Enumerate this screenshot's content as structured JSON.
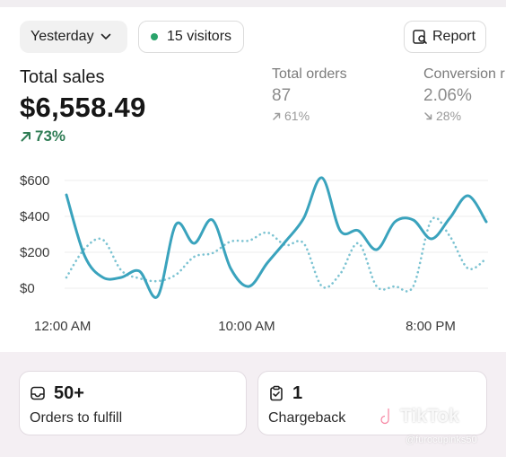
{
  "toolbar": {
    "date_label": "Yesterday",
    "visitors_label": "15 visitors",
    "report_label": "Report"
  },
  "metrics": {
    "total_sales": {
      "label": "Total sales",
      "value": "$6,558.49",
      "change": "73%"
    },
    "total_orders": {
      "label": "Total orders",
      "value": "87",
      "change": "61%"
    },
    "conversion": {
      "label": "Conversion r",
      "value": "2.06%",
      "change": "28%"
    }
  },
  "colors": {
    "accent_green": "#2f7d55",
    "series_current": "#3aa3bd",
    "series_previous": "#7cc3d2"
  },
  "chart_data": {
    "type": "line",
    "x_tick_labels": [
      "12:00 AM",
      "10:00 AM",
      "8:00 PM"
    ],
    "y_tick_labels": [
      "$600",
      "$400",
      "$200",
      "$0"
    ],
    "y_ticks": [
      600,
      400,
      200,
      0
    ],
    "ylim": [
      -60,
      690
    ],
    "x": [
      0,
      1,
      2,
      3,
      4,
      5,
      6,
      7,
      8,
      9,
      10,
      11,
      12,
      13,
      14,
      15,
      16,
      17,
      18,
      19,
      20,
      21,
      22,
      23
    ],
    "grid": true,
    "series": [
      {
        "values": [
          520,
          180,
          60,
          60,
          95,
          -45,
          355,
          250,
          380,
          110,
          10,
          140,
          260,
          390,
          615,
          320,
          320,
          215,
          370,
          380,
          275,
          390,
          515,
          370
        ]
      },
      {
        "values": [
          60,
          220,
          270,
          100,
          55,
          40,
          75,
          175,
          195,
          260,
          265,
          310,
          240,
          250,
          10,
          80,
          250,
          10,
          10,
          10,
          380,
          290,
          110,
          165
        ]
      }
    ]
  },
  "tiles": {
    "orders": {
      "value": "50+",
      "label": "Orders to fulfill",
      "icon": "inbox-icon"
    },
    "chargeback": {
      "value": "1",
      "label": "Chargeback",
      "icon": "clipboard-check-icon"
    }
  },
  "watermark": {
    "brand": "TikTok",
    "user": "@furocupinks50"
  }
}
